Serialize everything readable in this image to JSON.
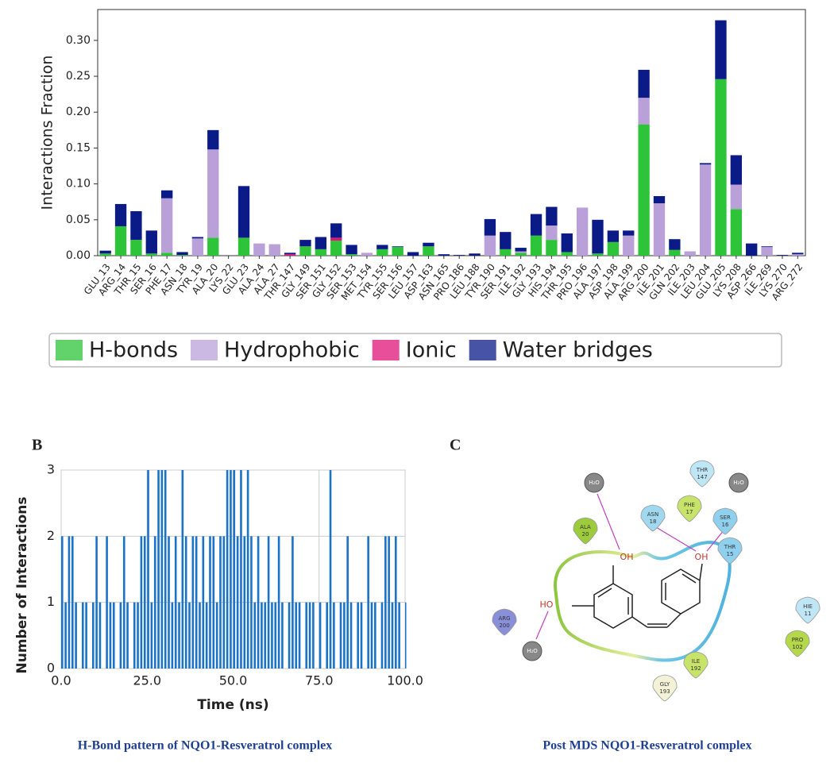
{
  "chart_data": [
    {
      "type": "bar",
      "stacked": true,
      "ylabel": "Interactions Fraction",
      "categories": [
        "GLU_13",
        "ARG_14",
        "THR_15",
        "SER_16",
        "PHE_17",
        "ASN_18",
        "TYR_19",
        "ALA_20",
        "LYS_22",
        "GLU_23",
        "ALA_24",
        "ALA_27",
        "THR_147",
        "GLY_149",
        "SER_151",
        "GLY_152",
        "SER_153",
        "MET_154",
        "TYR_155",
        "SER_156",
        "LEU_157",
        "ASP_163",
        "ASN_165",
        "PRO_186",
        "LEU_188",
        "TYR_190",
        "SER_191",
        "ILE_192",
        "GLY_193",
        "HIS_194",
        "THR_195",
        "PRO_196",
        "ALA_197",
        "ASP_198",
        "ALA_199",
        "ARG_200",
        "ILE_201",
        "GLN_202",
        "ILE_203",
        "LEU_204",
        "GLU_205",
        "LYS_208",
        "ASP_266",
        "ILE_269",
        "LYS_270",
        "ARG_272"
      ],
      "series": [
        {
          "name": "H-bonds",
          "color": "#2ec43a",
          "values": [
            0.003,
            0.041,
            0.022,
            0.003,
            0.004,
            0.001,
            0,
            0.025,
            0,
            0.025,
            0,
            0,
            0,
            0.013,
            0.009,
            0.021,
            0.002,
            0,
            0.009,
            0.012,
            0,
            0.013,
            0,
            0,
            0,
            0,
            0.009,
            0.004,
            0.028,
            0.022,
            0.005,
            0,
            0.003,
            0.019,
            0,
            0.183,
            0,
            0.008,
            0,
            0,
            0.246,
            0.065,
            0,
            0,
            0,
            0
          ]
        },
        {
          "name": "Hydrophobic",
          "color": "#b9a0d9",
          "values": [
            0,
            0,
            0,
            0,
            0.076,
            0,
            0.024,
            0.123,
            0,
            0,
            0.017,
            0.016,
            0,
            0,
            0,
            0,
            0,
            0.004,
            0,
            0,
            0,
            0,
            0,
            0,
            0,
            0.028,
            0,
            0.002,
            0,
            0.02,
            0,
            0.067,
            0,
            0,
            0.028,
            0.037,
            0.073,
            0,
            0.006,
            0.127,
            0,
            0.034,
            0,
            0.012,
            0,
            0.002
          ]
        },
        {
          "name": "Ionic",
          "color": "#e0147a",
          "values": [
            0,
            0,
            0,
            0,
            0,
            0,
            0,
            0,
            0,
            0,
            0,
            0,
            0.002,
            0,
            0,
            0.004,
            0,
            0,
            0,
            0,
            0,
            0,
            0,
            0,
            0,
            0,
            0,
            0,
            0,
            0,
            0,
            0,
            0,
            0,
            0,
            0,
            0,
            0,
            0,
            0,
            0,
            0,
            0,
            0,
            0,
            0
          ]
        },
        {
          "name": "Water bridges",
          "color": "#0a1a86",
          "values": [
            0.004,
            0.031,
            0.04,
            0.032,
            0.011,
            0.004,
            0.002,
            0.027,
            0,
            0.072,
            0,
            0,
            0.002,
            0.009,
            0.017,
            0.02,
            0.013,
            0,
            0.006,
            0.001,
            0.005,
            0.005,
            0.002,
            0.001,
            0.003,
            0.023,
            0.024,
            0.005,
            0.03,
            0.026,
            0.026,
            0,
            0.047,
            0.016,
            0.007,
            0.039,
            0.01,
            0.015,
            0,
            0.002,
            0.082,
            0.041,
            0.017,
            0.001,
            0.001,
            0.002
          ]
        }
      ],
      "ylim": [
        0,
        0.343
      ],
      "yticks": [
        {
          "value": 0,
          "label": "0.00"
        },
        {
          "value": 0.05,
          "label": "0.05"
        },
        {
          "value": 0.1,
          "label": "0.10"
        },
        {
          "value": 0.15,
          "label": "0.15"
        },
        {
          "value": 0.2,
          "label": "0.20"
        },
        {
          "value": 0.25,
          "label": "0.25"
        },
        {
          "value": 0.3,
          "label": "0.30"
        }
      ],
      "legend": "below"
    },
    {
      "type": "step",
      "panel": "B",
      "caption": "H-Bond pattern of NQO1-Resveratrol complex",
      "xlabel": "Time (ns)",
      "ylabel": "Number of Interactions",
      "color": "#1a73c9",
      "x": [
        0,
        1,
        2,
        3,
        4,
        5,
        6,
        7,
        8,
        9,
        10,
        11,
        12,
        13,
        14,
        15,
        16,
        17,
        18,
        19,
        20,
        21,
        22,
        23,
        24,
        25,
        26,
        27,
        28,
        29,
        30,
        31,
        32,
        33,
        34,
        35,
        36,
        37,
        38,
        39,
        40,
        41,
        42,
        43,
        44,
        45,
        46,
        47,
        48,
        49,
        50,
        51,
        52,
        53,
        54,
        55,
        56,
        57,
        58,
        59,
        60,
        61,
        62,
        63,
        64,
        65,
        66,
        67,
        68,
        69,
        70,
        71,
        72,
        73,
        74,
        75,
        76,
        77,
        78,
        79,
        80,
        81,
        82,
        83,
        84,
        85,
        86,
        87,
        88,
        89,
        90,
        91,
        92,
        93,
        94,
        95,
        96,
        97,
        98,
        99,
        100
      ],
      "values": [
        2,
        1,
        2,
        2,
        1,
        0,
        1,
        1,
        0,
        1,
        2,
        1,
        0,
        2,
        1,
        1,
        0,
        1,
        2,
        1,
        0,
        1,
        1,
        2,
        2,
        3,
        1,
        2,
        3,
        3,
        3,
        2,
        1,
        2,
        1,
        3,
        2,
        1,
        2,
        2,
        1,
        2,
        1,
        2,
        2,
        1,
        2,
        2,
        3,
        3,
        3,
        2,
        3,
        2,
        3,
        2,
        1,
        2,
        1,
        1,
        2,
        1,
        1,
        2,
        1,
        0,
        1,
        2,
        1,
        1,
        0,
        1,
        1,
        1,
        0,
        1,
        0,
        1,
        3,
        1,
        0,
        1,
        1,
        2,
        1,
        0,
        1,
        1,
        0,
        2,
        1,
        1,
        0,
        1,
        2,
        2,
        1,
        2,
        1,
        0,
        1
      ],
      "xlim": [
        0,
        100
      ],
      "ylim": [
        0,
        3
      ],
      "xticks": [
        {
          "value": 0,
          "label": "0.0"
        },
        {
          "value": 25,
          "label": "25.0"
        },
        {
          "value": 50,
          "label": "50.0"
        },
        {
          "value": 75,
          "label": "75.0"
        },
        {
          "value": 100,
          "label": "100.0"
        }
      ],
      "yticks": [
        0,
        1,
        2,
        3
      ],
      "grid": true
    }
  ],
  "diagram": {
    "panel": "C",
    "caption": "Post MDS NQO1-Resveratrol complex",
    "residues": [
      {
        "name": "H₂O"
      },
      {
        "name": "THR",
        "number": "147"
      },
      {
        "name": "H₂O"
      },
      {
        "name": "ALA",
        "number": "20"
      },
      {
        "name": "ASN",
        "number": "18"
      },
      {
        "name": "PHE",
        "number": "17"
      },
      {
        "name": "SER",
        "number": "16"
      },
      {
        "name": "THR",
        "number": "15"
      },
      {
        "name": "ARG",
        "number": "200"
      },
      {
        "name": "HIE",
        "number": "11"
      },
      {
        "name": "PRO",
        "number": "102"
      },
      {
        "name": "ILE",
        "number": "192"
      },
      {
        "name": "GLY",
        "number": "193"
      },
      {
        "name": "H₂O"
      }
    ],
    "ligand_labels": [
      "OH",
      "OH",
      "HO"
    ]
  }
}
